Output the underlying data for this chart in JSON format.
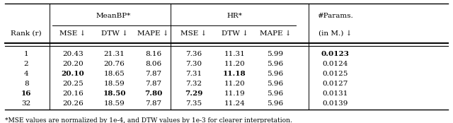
{
  "ranks": [
    "1",
    "2",
    "4",
    "8",
    "16",
    "32"
  ],
  "meanBP_MSE": [
    "20.43",
    "20.20",
    "20.10",
    "20.25",
    "20.16",
    "20.26"
  ],
  "meanBP_DTW": [
    "21.31",
    "20.76",
    "18.65",
    "18.59",
    "18.50",
    "18.59"
  ],
  "meanBP_MAPE": [
    "8.16",
    "8.06",
    "7.87",
    "7.87",
    "7.80",
    "7.87"
  ],
  "hr_MSE": [
    "7.36",
    "7.30",
    "7.31",
    "7.32",
    "7.29",
    "7.35"
  ],
  "hr_DTW": [
    "11.31",
    "11.20",
    "11.18",
    "11.20",
    "11.19",
    "11.24"
  ],
  "hr_MAPE": [
    "5.99",
    "5.96",
    "5.96",
    "5.96",
    "5.96",
    "5.96"
  ],
  "params": [
    "0.0123",
    "0.0124",
    "0.0125",
    "0.0127",
    "0.0131",
    "0.0139"
  ],
  "footnote": "*MSE values are normalized by 1e-4, and DTW values by 1e-3 for clearer interpretation."
}
